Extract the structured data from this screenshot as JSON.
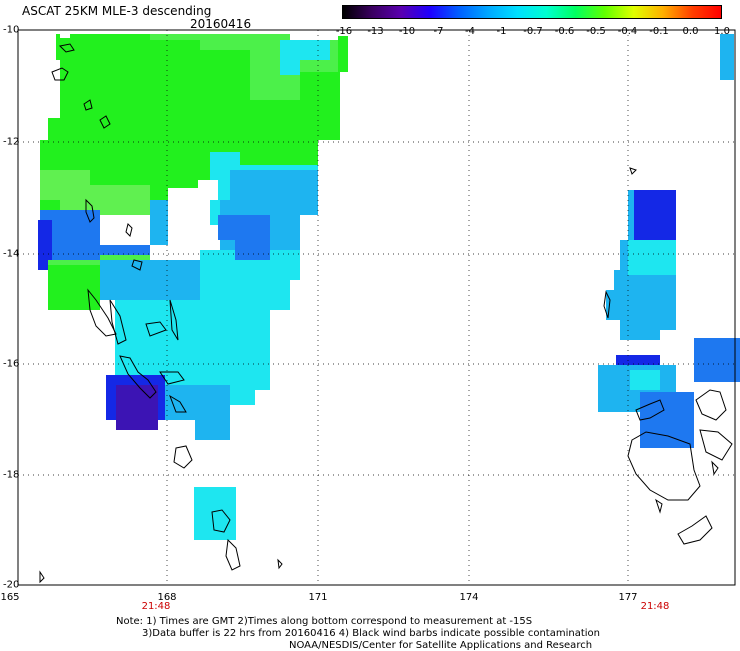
{
  "header": {
    "title": "ASCAT 25KM MLE-3 descending",
    "date": "20160416"
  },
  "colorbar": {
    "labels": [
      "-16",
      "-13",
      "-10",
      "-7",
      "-4",
      "-1",
      "-0.7",
      "-0.6",
      "-0.5",
      "-0.4",
      "-0.1",
      "0.0",
      "1.0"
    ],
    "colors": [
      "#000000",
      "#3a0060",
      "#5a00b0",
      "#1e00ff",
      "#0060ff",
      "#00a8ff",
      "#00e0ff",
      "#00ffd0",
      "#00ff60",
      "#60ff00",
      "#e0ff00",
      "#ffb000",
      "#ff4000",
      "#ff0000"
    ]
  },
  "axes": {
    "y_ticks": [
      "-10",
      "-12",
      "-14",
      "-16",
      "-18",
      "-20"
    ],
    "x_ticks": [
      "165",
      "168",
      "171",
      "174",
      "177"
    ],
    "time_labels": [
      "21:48",
      "21:48"
    ]
  },
  "notes": {
    "line1": "Note: 1) Times are GMT 2)Times along bottom correspond to measurement at -15S",
    "line2": "3)Data buffer is 22 hrs from 20160416 4) Black wind barbs indicate possible contamination",
    "line3": "NOAA/NESDIS/Center for Satellite Applications and Research"
  },
  "colors": {
    "green": "#22f01e",
    "light_green": "#4cf04a",
    "cyan": "#1ee6f0",
    "light_blue": "#1eb4f0",
    "blue": "#1e78f0",
    "dark_blue": "#1428e6",
    "indigo": "#3c14b4"
  }
}
